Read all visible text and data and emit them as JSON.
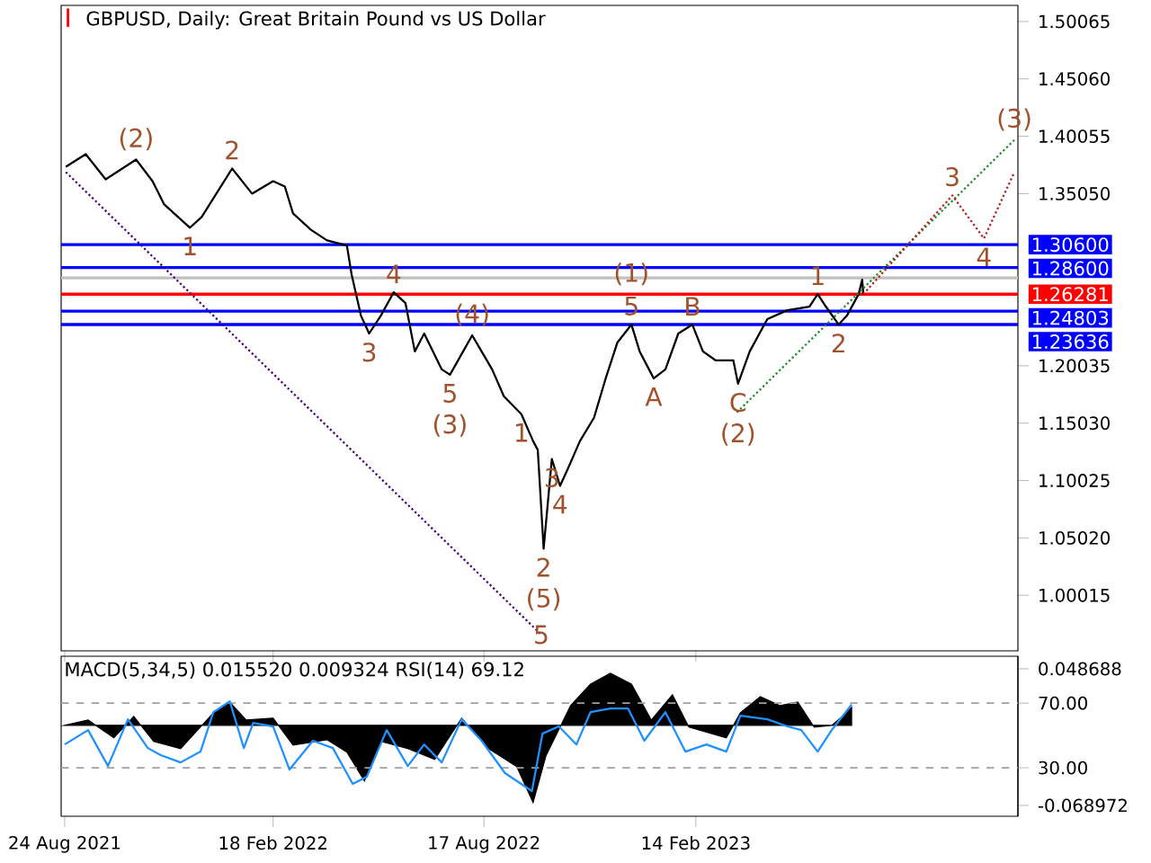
{
  "chart_data": [
    {
      "type": "line",
      "title": "GBPUSD, Daily:  Great Britain Pound vs US Dollar",
      "xlim": [
        "2021-08-21",
        "2023-11-16"
      ],
      "ylim": [
        0.9517,
        1.5147
      ],
      "xticks": [
        {
          "value": "2021-08-24",
          "label": null
        },
        {
          "value": "2022-02-18",
          "label": null
        },
        {
          "value": "2022-08-17",
          "label": null
        },
        {
          "value": "2023-02-14",
          "label": null
        }
      ],
      "yticks": [
        {
          "value": 1.00015,
          "label": "1.00015"
        },
        {
          "value": 1.0502,
          "label": "1.05020"
        },
        {
          "value": 1.10025,
          "label": "1.10025"
        },
        {
          "value": 1.1503,
          "label": "1.15030"
        },
        {
          "value": 1.20035,
          "label": "1.20035"
        },
        {
          "value": 1.3505,
          "label": "1.35050"
        },
        {
          "value": 1.40055,
          "label": "1.40055"
        },
        {
          "value": 1.4506,
          "label": "1.45060"
        },
        {
          "value": 1.50065,
          "label": "1.50065"
        }
      ],
      "tick_labels": "y",
      "series": [
        {
          "color": "#000000",
          "x": [
            "2021-08-25",
            "2021-09-11",
            "2021-09-28",
            "2021-10-24",
            "2021-11-07",
            "2021-11-17",
            "2021-12-09",
            "2021-12-19",
            "2022-01-14",
            "2022-01-31",
            "2022-02-18",
            "2022-02-28",
            "2022-03-07",
            "2022-03-22",
            "2022-04-05",
            "2022-04-22",
            "2022-04-26",
            "2022-05-04",
            "2022-05-11",
            "2022-05-21",
            "2022-06-01",
            "2022-06-11",
            "2022-06-19",
            "2022-06-27",
            "2022-07-12",
            "2022-07-19",
            "2022-08-07",
            "2022-08-15",
            "2022-08-24",
            "2022-09-03",
            "2022-09-18",
            "2022-09-28",
            "2022-10-02",
            "2022-10-07",
            "2022-10-14",
            "2022-10-21",
            "2022-10-28",
            "2022-11-07",
            "2022-11-19",
            "2022-11-29",
            "2022-12-09",
            "2022-12-21",
            "2022-12-28",
            "2023-01-09",
            "2023-01-19",
            "2023-01-30",
            "2023-02-11",
            "2023-02-20",
            "2023-03-03",
            "2023-03-18",
            "2023-03-22",
            "2023-04-01",
            "2023-04-16",
            "2023-05-03",
            "2023-05-22",
            "2023-05-29",
            "2023-06-05",
            "2023-06-16",
            "2023-06-23",
            "2023-07-03",
            "2023-07-06",
            "2023-07-07"
          ],
          "values": [
            1.374,
            1.3849,
            1.363,
            1.3802,
            1.3614,
            1.3411,
            1.3208,
            1.3302,
            1.3724,
            1.3505,
            1.3614,
            1.3567,
            1.3333,
            1.3192,
            1.3098,
            1.3052,
            1.2801,
            1.2441,
            1.2285,
            1.2441,
            1.2645,
            1.2551,
            1.2129,
            1.2285,
            1.1972,
            1.1925,
            1.2269,
            1.2129,
            1.1972,
            1.1738,
            1.1581,
            1.1347,
            1.1269,
            1.0408,
            1.119,
            1.0956,
            1.1112,
            1.1347,
            1.155,
            1.1894,
            1.2207,
            1.2363,
            1.2129,
            1.1894,
            1.1972,
            1.2285,
            1.2363,
            1.2129,
            1.205,
            1.205,
            1.1847,
            1.2129,
            1.241,
            1.2488,
            1.252,
            1.2629,
            1.252,
            1.2363,
            1.2441,
            1.2629,
            1.2754,
            1.2628
          ]
        },
        {
          "color": "#4b0082",
          "line_style": "dotted",
          "x": [
            "2021-08-25",
            "2022-10-05"
          ],
          "values": [
            1.3693,
            0.9658
          ]
        },
        {
          "color": "#228b22",
          "line_style": "dotted",
          "x": [
            "2023-03-21",
            "2023-11-13"
          ],
          "values": [
            1.1597,
            1.3974
          ]
        },
        {
          "color": "#b22222",
          "line_style": "dotted",
          "x": [
            "2023-07-07",
            "2023-09-21",
            "2023-10-18",
            "2023-11-13"
          ],
          "values": [
            1.2628,
            1.3489,
            1.3114,
            1.3693
          ]
        }
      ],
      "ref_lines": [
        {
          "axis": "y",
          "value": 1.306,
          "label": "1.30600",
          "color": "#0000ff"
        },
        {
          "axis": "y",
          "value": 1.286,
          "label": "1.28600",
          "color": "#0000ff"
        },
        {
          "axis": "y",
          "value": 1.277,
          "color": "#c0c0c0"
        },
        {
          "axis": "y",
          "value": 1.26281,
          "label": "1.26281",
          "color": "#ff0000"
        },
        {
          "axis": "y",
          "value": 1.24803,
          "label": "1.24803",
          "color": "#0000ff"
        },
        {
          "axis": "y",
          "value": 1.23636,
          "label": "1.23636",
          "color": "#0000ff"
        }
      ],
      "annotations": [
        "I",
        {
          "text": "(2)",
          "x": "2021-10-24",
          "y": 1.3802
        },
        {
          "text": "2",
          "x": "2022-01-14",
          "y": 1.3724
        },
        {
          "text": "1",
          "x": "2021-12-09",
          "y": 1.3208
        },
        {
          "text": "4",
          "x": "2022-06-01",
          "y": 1.2645
        },
        {
          "text": "3",
          "x": "2022-05-11",
          "y": 1.2285
        },
        {
          "text": "(4)",
          "x": "2022-08-07",
          "y": 1.2269
        },
        {
          "text": "5",
          "x": "2022-07-19",
          "y": 1.1925
        },
        {
          "text": "(3)",
          "x": "2022-07-19",
          "y": 1.1925
        },
        {
          "text": "3",
          "x": "2022-10-14",
          "y": 1.119
        },
        {
          "text": "1",
          "x": "2022-09-18",
          "y": 1.1581
        },
        {
          "text": "4",
          "x": "2022-10-21",
          "y": 1.0956
        },
        {
          "text": "2",
          "x": "2022-10-07",
          "y": 1.0408
        },
        {
          "text": "(5)",
          "x": "2022-10-07",
          "y": 1.0408
        },
        {
          "text": "5",
          "x": "2022-10-05",
          "y": 0.9658
        },
        {
          "text": "5",
          "x": "2022-12-21",
          "y": 1.2363
        },
        {
          "text": "(1)",
          "x": "2022-12-21",
          "y": 1.2363
        },
        {
          "text": "B",
          "x": "2023-02-11",
          "y": 1.2363
        },
        {
          "text": "A",
          "x": "2023-01-09",
          "y": 1.1894
        },
        {
          "text": "C",
          "x": "2023-03-22",
          "y": 1.1847
        },
        {
          "text": "(2)",
          "x": "2023-03-22",
          "y": 1.1847
        },
        {
          "text": "1",
          "x": "2023-05-29",
          "y": 1.2629
        },
        {
          "text": "2",
          "x": "2023-06-16",
          "y": 1.2363
        },
        {
          "text": "3",
          "x": "2023-09-21",
          "y": 1.3489
        },
        {
          "text": "4",
          "x": "2023-10-18",
          "y": 1.3114
        },
        {
          "text": "(3)",
          "x": "2023-11-13",
          "y": 1.3974
        }
      ]
    },
    {
      "type": "line",
      "title": "MACD(5,34,5) 0.015520 0.009324 RSI(14) 69.12",
      "xlim": [
        "2021-08-21",
        "2023-11-16"
      ],
      "ylim": [
        -0.0783,
        0.0595
      ],
      "y2lim": [
        0,
        99
      ],
      "xticks": [
        {
          "value": "2021-08-24",
          "label": "24 Aug 2021"
        },
        {
          "value": "2022-02-18",
          "label": "18 Feb 2022"
        },
        {
          "value": "2022-08-17",
          "label": "17 Aug 2022"
        },
        {
          "value": "2023-02-14",
          "label": "14 Feb 2023"
        }
      ],
      "yticks": [
        -0.068972,
        0.048688
      ],
      "y2ticks": [
        {
          "value": 30,
          "label": "30.00"
        },
        {
          "value": 70,
          "label": "70.00"
        }
      ],
      "series": [
        {
          "type": "area",
          "color": "#000000",
          "x": [
            "2021-08-24",
            "2021-09-13",
            "2021-10-05",
            "2021-10-22",
            "2021-11-08",
            "2021-12-01",
            "2021-12-29",
            "2022-01-12",
            "2022-01-26",
            "2022-02-18",
            "2022-03-07",
            "2022-04-05",
            "2022-04-22",
            "2022-05-07",
            "2022-05-21",
            "2022-06-13",
            "2022-07-06",
            "2022-07-29",
            "2022-08-21",
            "2022-09-14",
            "2022-09-28",
            "2022-10-09",
            "2022-10-30",
            "2022-11-16",
            "2022-12-03",
            "2022-12-21",
            "2023-01-07",
            "2023-01-25",
            "2023-02-08",
            "2023-03-12",
            "2023-03-24",
            "2023-04-10",
            "2023-04-27",
            "2023-05-12",
            "2023-05-26",
            "2023-06-10",
            "2023-06-19",
            "2023-06-27"
          ],
          "values": [
            0,
            0.0046,
            -0.0108,
            0.0077,
            -0.0139,
            -0.0201,
            0.0108,
            0.0201,
            0.0046,
            0.0062,
            -0.017,
            -0.0124,
            -0.0232,
            -0.048,
            -0.0139,
            -0.0201,
            -0.0294,
            0.0062,
            -0.0201,
            -0.0356,
            -0.0666,
            -0.0263,
            0.017,
            0.0356,
            0.0449,
            0.0356,
            0.0046,
            0.0263,
            -0.0015,
            -0.0108,
            0.0108,
            0.0248,
            0.017,
            0.0201,
            -0.0015,
            0,
            0.0077,
            0.0155
          ]
        },
        {
          "type": "line",
          "axis": "y2",
          "color": "#1e90ff",
          "x": [
            "2021-08-24",
            "2021-09-13",
            "2021-09-30",
            "2021-10-17",
            "2021-11-03",
            "2021-11-14",
            "2021-12-01",
            "2021-12-18",
            "2021-12-29",
            "2022-01-12",
            "2022-01-24",
            "2022-02-01",
            "2022-02-18",
            "2022-03-04",
            "2022-03-24",
            "2022-04-10",
            "2022-04-27",
            "2022-05-09",
            "2022-05-26",
            "2022-06-13",
            "2022-06-27",
            "2022-07-12",
            "2022-07-29",
            "2022-08-15",
            "2022-09-04",
            "2022-09-27",
            "2022-10-06",
            "2022-10-20",
            "2022-11-04",
            "2022-11-16",
            "2022-12-03",
            "2022-12-18",
            "2023-01-01",
            "2023-01-19",
            "2023-02-05",
            "2023-02-23",
            "2023-03-12",
            "2023-03-24",
            "2023-04-16",
            "2023-05-03",
            "2023-05-15",
            "2023-05-29",
            "2023-06-10",
            "2023-06-27"
          ],
          "values": [
            44.4,
            53.3,
            31.1,
            60.0,
            42.2,
            37.8,
            33.3,
            40.0,
            64.4,
            71.1,
            42.2,
            57.8,
            55.6,
            28.9,
            46.7,
            42.2,
            20.0,
            24.4,
            53.3,
            31.1,
            44.4,
            33.3,
            60.0,
            46.7,
            26.7,
            15.6,
            51.1,
            55.6,
            44.4,
            64.4,
            66.7,
            66.7,
            46.7,
            64.4,
            40.0,
            44.4,
            40.0,
            62.2,
            60.0,
            55.6,
            53.3,
            40.0,
            53.3,
            69.12
          ]
        }
      ],
      "ref_lines": [
        {
          "axis": "y2",
          "value": 30,
          "color": "#a0a0a0",
          "line_style": "dashed"
        },
        {
          "axis": "y2",
          "value": 70,
          "color": "#a0a0a0",
          "line_style": "dashed"
        }
      ]
    }
  ]
}
